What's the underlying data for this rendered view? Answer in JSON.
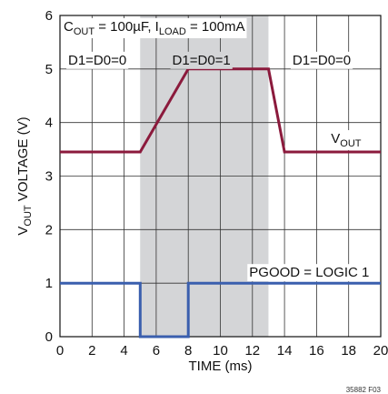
{
  "chart_data": {
    "type": "line",
    "xlabel": "TIME (ms)",
    "ylabel": {
      "main": "V",
      "sub": "OUT",
      "rest": " VOLTAGE (V)"
    },
    "xlim": [
      0,
      20
    ],
    "ylim": [
      0,
      6
    ],
    "xticks": [
      0,
      2,
      4,
      6,
      8,
      10,
      12,
      14,
      16,
      18,
      20
    ],
    "yticks": [
      0,
      1,
      2,
      3,
      4,
      5,
      6
    ],
    "grid": true,
    "shaded_region": {
      "x": [
        5,
        13
      ]
    },
    "series": [
      {
        "name": "VOUT",
        "color": "#8b1a3c",
        "x": [
          0,
          5,
          8,
          13,
          14,
          20
        ],
        "y": [
          3.45,
          3.45,
          5.0,
          5.0,
          3.45,
          3.45
        ]
      },
      {
        "name": "PGOOD = LOGIC 1",
        "color": "#3a5fae",
        "x": [
          0,
          5,
          5,
          8,
          8,
          20
        ],
        "y": [
          1.0,
          1.0,
          0.0,
          0.0,
          1.0,
          1.0
        ]
      }
    ],
    "annotations": {
      "conditions": {
        "c_main": "C",
        "c_sub": "OUT",
        "c_rest": " = 100µF, I",
        "i_sub": "LOAD",
        "i_rest": " = 100mA"
      },
      "state_left": "D1=D0=0",
      "state_mid": "D1=D0=1",
      "state_right": "D1=D0=0",
      "vout_label": {
        "main": "V",
        "sub": "OUT"
      },
      "pgood_label": "PGOOD = LOGIC 1"
    },
    "figure_id": "35882 F03"
  }
}
